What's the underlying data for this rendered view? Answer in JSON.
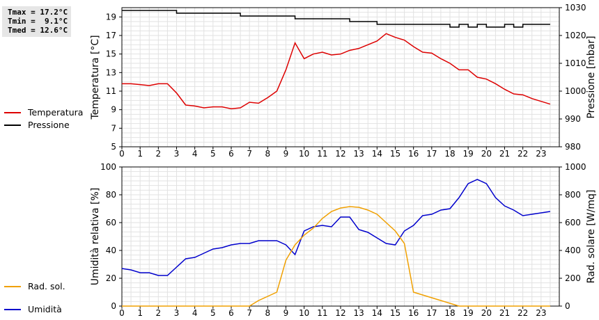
{
  "stats": {
    "tmax": "Tmax = 17.2°C",
    "tmin": "Tmin =  9.1°C",
    "tmed": "Tmed = 12.6°C"
  },
  "chart_data": [
    {
      "type": "line",
      "ylabel": "Temperatura [°C]",
      "ylabel_right": "Pressione [mbar]",
      "x_ticks": [
        0,
        1,
        2,
        3,
        4,
        5,
        6,
        7,
        8,
        9,
        10,
        11,
        12,
        13,
        14,
        15,
        16,
        17,
        18,
        19,
        20,
        21,
        22,
        23
      ],
      "xlim": [
        0,
        24
      ],
      "ylim": [
        5,
        20
      ],
      "y_ticks": [
        5,
        7,
        9,
        11,
        13,
        15,
        17,
        19
      ],
      "ylim_right": [
        980,
        1030
      ],
      "y_ticks_right": [
        980,
        990,
        1000,
        1010,
        1020,
        1030
      ],
      "grid": true,
      "legend_placement": "left",
      "series": [
        {
          "name": "Temperatura",
          "axis": "left",
          "color": "#dd0000",
          "x": [
            0,
            0.5,
            1,
            1.5,
            2,
            2.5,
            3,
            3.5,
            4,
            4.5,
            5,
            5.5,
            6,
            6.5,
            7,
            7.5,
            8,
            8.5,
            9,
            9.5,
            10,
            10.5,
            11,
            11.5,
            12,
            12.5,
            13,
            13.5,
            14,
            14.5,
            15,
            15.5,
            16,
            16.5,
            17,
            17.5,
            18,
            18.5,
            19,
            19.5,
            20,
            20.5,
            21,
            21.5,
            22,
            22.5,
            23,
            23.5
          ],
          "values": [
            11.8,
            11.8,
            11.7,
            11.6,
            11.8,
            11.8,
            10.8,
            9.5,
            9.4,
            9.2,
            9.3,
            9.3,
            9.1,
            9.2,
            9.8,
            9.7,
            10.3,
            11.0,
            13.3,
            16.2,
            14.5,
            15.0,
            15.2,
            14.9,
            15.0,
            15.4,
            15.6,
            16.0,
            16.4,
            17.2,
            16.8,
            16.5,
            15.8,
            15.2,
            15.1,
            14.5,
            14.0,
            13.3,
            13.3,
            12.5,
            12.3,
            11.8,
            11.2,
            10.7,
            10.6,
            10.2,
            9.9,
            9.6
          ]
        },
        {
          "name": "Pressione",
          "axis": "right",
          "color": "#000000",
          "x": [
            0,
            0.5,
            1,
            1.5,
            2,
            2.5,
            3,
            3.5,
            4,
            4.5,
            5,
            5.5,
            6,
            6.5,
            7,
            7.5,
            8,
            8.5,
            9,
            9.5,
            10,
            10.5,
            11,
            11.5,
            12,
            12.5,
            13,
            13.5,
            14,
            14.5,
            15,
            15.5,
            16,
            16.5,
            17,
            17.5,
            18,
            18.5,
            19,
            19.5,
            20,
            20.5,
            21,
            21.5,
            22,
            22.5,
            23,
            23.5
          ],
          "values": [
            1029,
            1029,
            1029,
            1029,
            1029,
            1029,
            1028,
            1028,
            1028,
            1028,
            1028,
            1028,
            1028,
            1027,
            1027,
            1027,
            1027,
            1027,
            1027,
            1026,
            1026,
            1026,
            1026,
            1026,
            1026,
            1025,
            1025,
            1025,
            1024,
            1024,
            1024,
            1024,
            1024,
            1024,
            1024,
            1024,
            1023,
            1024,
            1023,
            1024,
            1023,
            1023,
            1024,
            1023,
            1024,
            1024,
            1024,
            1024
          ]
        }
      ]
    },
    {
      "type": "line",
      "ylabel": "Umidità relativa [%]",
      "ylabel_right": "Rad. solare [W/mq]",
      "x_ticks": [
        0,
        1,
        2,
        3,
        4,
        5,
        6,
        7,
        8,
        9,
        10,
        11,
        12,
        13,
        14,
        15,
        16,
        17,
        18,
        19,
        20,
        21,
        22,
        23
      ],
      "xlim": [
        0,
        24
      ],
      "ylim": [
        0,
        100
      ],
      "y_ticks": [
        0,
        20,
        40,
        60,
        80,
        100
      ],
      "ylim_right": [
        0,
        1000
      ],
      "y_ticks_right": [
        0,
        200,
        400,
        600,
        800,
        1000
      ],
      "grid": true,
      "legend_placement": "left",
      "series": [
        {
          "name": "Umidità",
          "axis": "left",
          "color": "#0000cc",
          "x": [
            0,
            0.5,
            1,
            1.5,
            2,
            2.5,
            3,
            3.5,
            4,
            4.5,
            5,
            5.5,
            6,
            6.5,
            7,
            7.5,
            8,
            8.5,
            9,
            9.5,
            10,
            10.5,
            11,
            11.5,
            12,
            12.5,
            13,
            13.5,
            14,
            14.5,
            15,
            15.5,
            16,
            16.5,
            17,
            17.5,
            18,
            18.5,
            19,
            19.5,
            20,
            20.5,
            21,
            21.5,
            22,
            22.5,
            23,
            23.5
          ],
          "values": [
            27,
            26,
            24,
            24,
            22,
            22,
            28,
            34,
            35,
            38,
            41,
            42,
            44,
            45,
            45,
            47,
            47,
            47,
            44,
            37,
            54,
            57,
            58,
            57,
            64,
            64,
            55,
            53,
            49,
            45,
            44,
            54,
            58,
            65,
            66,
            69,
            70,
            78,
            88,
            91,
            88,
            78,
            72,
            69,
            65,
            66,
            67,
            68
          ]
        },
        {
          "name": "Rad. sol.",
          "axis": "right",
          "color": "#f0a000",
          "x": [
            0,
            1,
            2,
            3,
            4,
            5,
            6,
            7,
            7.5,
            8,
            8.5,
            9,
            9.5,
            10,
            10.5,
            11,
            11.5,
            12,
            12.5,
            13,
            13.5,
            14,
            14.5,
            15,
            15.5,
            16,
            16.5,
            17,
            17.5,
            18,
            18.5,
            19,
            20,
            21,
            22,
            23,
            23.5
          ],
          "values": [
            0,
            0,
            0,
            0,
            0,
            0,
            0,
            0,
            40,
            70,
            100,
            330,
            440,
            510,
            560,
            630,
            680,
            705,
            715,
            710,
            690,
            660,
            600,
            540,
            450,
            100,
            80,
            60,
            40,
            20,
            0,
            0,
            0,
            0,
            0,
            0,
            0
          ]
        }
      ]
    }
  ]
}
